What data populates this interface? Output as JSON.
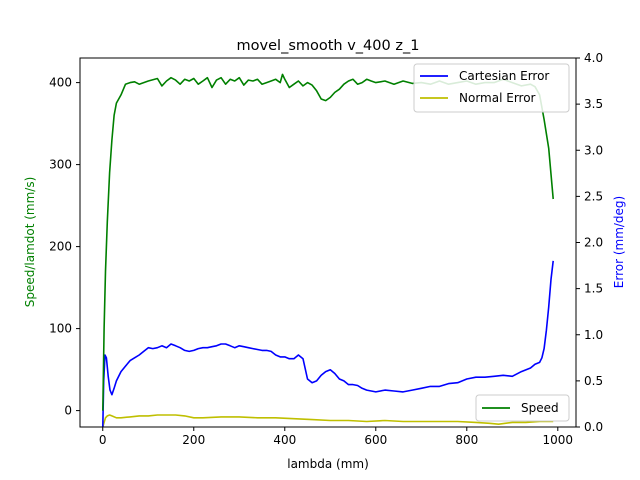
{
  "chart_data": {
    "type": "line",
    "title": "movel_smooth v_400 z_1",
    "xlabel": "lambda (mm)",
    "ylabel_left": "Speed/lamdot (mm/s)",
    "ylabel_right": "Error (mm/deg)",
    "xlim": [
      -50,
      1040
    ],
    "ylim_left": [
      -20,
      430
    ],
    "ylim_right": [
      0,
      4.0
    ],
    "xticks": [
      0,
      200,
      400,
      600,
      800,
      1000
    ],
    "yticks_left": [
      0,
      100,
      200,
      300,
      400
    ],
    "yticks_right": [
      0.0,
      0.5,
      1.0,
      1.5,
      2.0,
      2.5,
      3.0,
      3.5,
      4.0
    ],
    "ytick_labels_right": [
      "0.0",
      "0.5",
      "1.0",
      "1.5",
      "2.0",
      "2.5",
      "3.0",
      "3.5",
      "4.0"
    ],
    "grid": false,
    "legends": [
      {
        "placement": "top-right",
        "entries": [
          "Cartesian Error",
          "Normal Error"
        ]
      },
      {
        "placement": "bottom-right",
        "entries": [
          "Speed"
        ]
      }
    ],
    "colors": {
      "speed": "#008000",
      "cartesian_error": "#0000ff",
      "normal_error": "#bfbf00",
      "ylabel_left": "#008000",
      "ylabel_right": "#0000ff"
    },
    "series": [
      {
        "name": "Speed",
        "axis": "left",
        "x": [
          0,
          3,
          6,
          10,
          15,
          20,
          25,
          30,
          40,
          50,
          60,
          70,
          80,
          100,
          120,
          130,
          140,
          150,
          160,
          170,
          180,
          190,
          200,
          210,
          220,
          230,
          240,
          250,
          260,
          270,
          280,
          290,
          300,
          310,
          320,
          330,
          340,
          350,
          360,
          370,
          380,
          390,
          395,
          400,
          410,
          420,
          430,
          440,
          450,
          460,
          470,
          480,
          490,
          500,
          510,
          520,
          530,
          540,
          550,
          560,
          570,
          580,
          590,
          600,
          620,
          640,
          660,
          680,
          700,
          720,
          740,
          760,
          780,
          800,
          820,
          840,
          860,
          880,
          900,
          920,
          940,
          950,
          960,
          970,
          980,
          990
        ],
        "y": [
          0,
          100,
          170,
          230,
          290,
          330,
          360,
          375,
          385,
          398,
          400,
          401,
          398,
          402,
          405,
          396,
          402,
          406,
          403,
          398,
          404,
          402,
          405,
          398,
          402,
          406,
          394,
          403,
          406,
          398,
          404,
          402,
          406,
          397,
          403,
          402,
          404,
          398,
          400,
          402,
          404,
          400,
          410,
          404,
          394,
          398,
          402,
          396,
          400,
          397,
          390,
          380,
          378,
          382,
          388,
          392,
          398,
          402,
          404,
          398,
          400,
          404,
          402,
          400,
          402,
          398,
          402,
          399,
          400,
          398,
          402,
          398,
          400,
          402,
          398,
          400,
          400,
          404,
          400,
          396,
          398,
          395,
          385,
          355,
          320,
          258
        ]
      },
      {
        "name": "Cartesian Error",
        "axis": "right",
        "x": [
          0,
          2,
          5,
          8,
          12,
          16,
          20,
          25,
          30,
          40,
          50,
          60,
          70,
          80,
          90,
          100,
          110,
          120,
          130,
          140,
          150,
          160,
          170,
          180,
          190,
          200,
          210,
          220,
          230,
          240,
          250,
          260,
          270,
          280,
          290,
          300,
          310,
          320,
          330,
          340,
          350,
          360,
          370,
          380,
          390,
          400,
          410,
          420,
          430,
          440,
          450,
          460,
          470,
          480,
          490,
          500,
          510,
          520,
          530,
          540,
          550,
          560,
          570,
          580,
          600,
          620,
          640,
          660,
          680,
          700,
          720,
          740,
          760,
          780,
          800,
          820,
          840,
          860,
          880,
          900,
          920,
          940,
          950,
          960,
          965,
          970,
          975,
          980,
          985,
          990
        ],
        "y": [
          0.0,
          0.5,
          0.78,
          0.75,
          0.55,
          0.4,
          0.35,
          0.42,
          0.5,
          0.6,
          0.66,
          0.72,
          0.75,
          0.78,
          0.82,
          0.86,
          0.85,
          0.86,
          0.88,
          0.86,
          0.9,
          0.88,
          0.86,
          0.83,
          0.82,
          0.83,
          0.85,
          0.86,
          0.86,
          0.87,
          0.88,
          0.9,
          0.9,
          0.88,
          0.86,
          0.88,
          0.87,
          0.86,
          0.85,
          0.84,
          0.83,
          0.83,
          0.82,
          0.78,
          0.76,
          0.76,
          0.74,
          0.74,
          0.78,
          0.74,
          0.52,
          0.48,
          0.5,
          0.56,
          0.6,
          0.62,
          0.58,
          0.52,
          0.5,
          0.46,
          0.46,
          0.45,
          0.42,
          0.4,
          0.38,
          0.4,
          0.39,
          0.38,
          0.4,
          0.42,
          0.44,
          0.44,
          0.47,
          0.48,
          0.52,
          0.54,
          0.54,
          0.55,
          0.56,
          0.55,
          0.6,
          0.64,
          0.68,
          0.7,
          0.75,
          0.85,
          1.05,
          1.3,
          1.6,
          1.8
        ]
      },
      {
        "name": "Normal Error",
        "axis": "right",
        "x": [
          0,
          3,
          6,
          10,
          15,
          20,
          30,
          40,
          60,
          80,
          100,
          120,
          140,
          160,
          180,
          200,
          220,
          260,
          300,
          340,
          380,
          420,
          460,
          500,
          540,
          580,
          620,
          660,
          700,
          740,
          780,
          820,
          850,
          870,
          900,
          930,
          960,
          990
        ],
        "y": [
          0.0,
          0.05,
          0.1,
          0.12,
          0.13,
          0.12,
          0.1,
          0.1,
          0.11,
          0.12,
          0.12,
          0.13,
          0.13,
          0.13,
          0.12,
          0.1,
          0.1,
          0.11,
          0.11,
          0.1,
          0.1,
          0.09,
          0.08,
          0.07,
          0.07,
          0.06,
          0.07,
          0.06,
          0.06,
          0.06,
          0.06,
          0.05,
          0.04,
          0.03,
          0.05,
          0.05,
          0.06,
          0.06
        ]
      }
    ]
  }
}
